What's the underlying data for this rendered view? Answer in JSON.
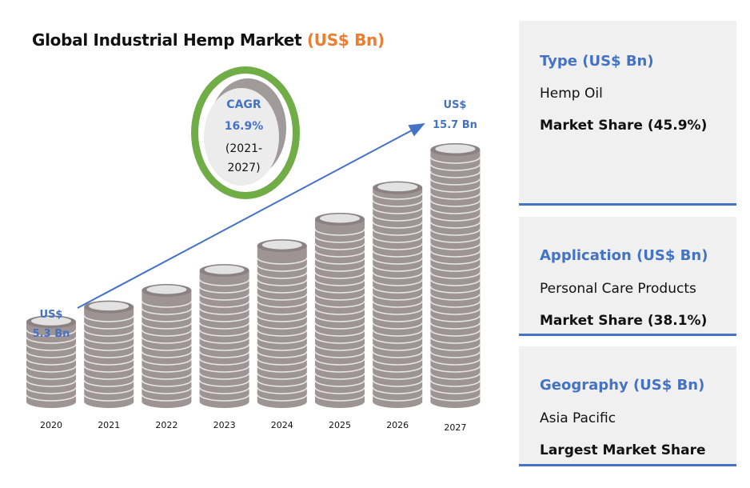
{
  "title": {
    "main": "Global Industrial Hemp Market",
    "unit": "(US$ Bn)"
  },
  "cagr": {
    "label": "CAGR",
    "value": "16.9%",
    "period_line1": "(2021-",
    "period_line2": "2027)"
  },
  "start_label": {
    "line1": "US$",
    "line2": "5.3 Bn"
  },
  "end_label": {
    "line1": "US$",
    "line2": "15.7 Bn"
  },
  "chart_data": {
    "type": "bar",
    "categories": [
      "2020",
      "2021",
      "2022",
      "2023",
      "2024",
      "2025",
      "2026",
      "2027"
    ],
    "values": [
      5.3,
      6.2,
      7.2,
      8.4,
      9.9,
      11.5,
      13.4,
      15.7
    ],
    "title": "Global Industrial Hemp Market (US$ Bn)",
    "xlabel": "",
    "ylabel": "",
    "annotations": [
      "US$ 5.3 Bn",
      "US$ 15.7 Bn",
      "CAGR 16.9% (2021-2027)"
    ]
  },
  "panels": [
    {
      "heading": "Type (US$ Bn)",
      "value": "Hemp Oil",
      "stat": "Market Share (45.9%)"
    },
    {
      "heading": "Application (US$ Bn)",
      "value": "Personal Care Products",
      "stat": "Market Share (38.1%)"
    },
    {
      "heading": "Geography (US$ Bn)",
      "value": "Asia Pacific",
      "stat": "Largest Market Share"
    }
  ],
  "colors": {
    "accent": "#ed7d31",
    "heading_blue": "#4472c4",
    "coin": "#9e9494",
    "coin_ring": "#e6e6e6",
    "cagr_ring": "#70ad47",
    "panel_bg": "#f0f0f0"
  }
}
